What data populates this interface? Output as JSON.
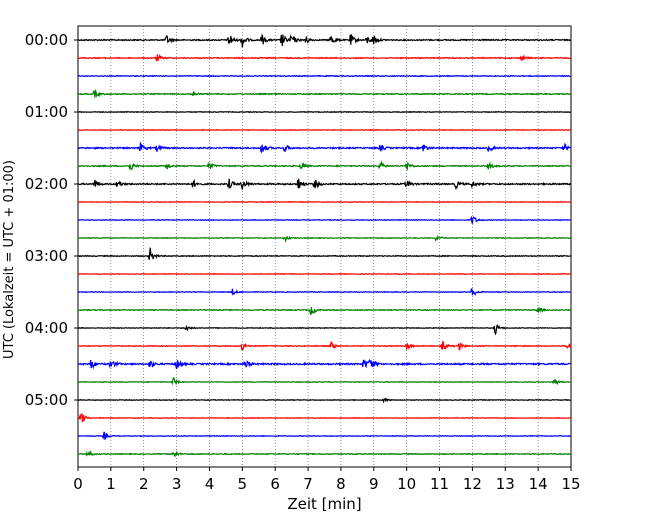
{
  "chart_data": {
    "type": "line",
    "title": "",
    "xlabel": "Zeit  [min]",
    "ylabel": "UTC (Lokalzeit = UTC + 01:00)",
    "xlim": [
      0,
      15
    ],
    "x_ticks": [
      0,
      1,
      2,
      3,
      4,
      5,
      6,
      7,
      8,
      9,
      10,
      11,
      12,
      13,
      14,
      15
    ],
    "y_tick_labels": [
      "00:00",
      "01:00",
      "02:00",
      "03:00",
      "04:00",
      "05:00"
    ],
    "vertical_grid": "dotted",
    "trace_interval_min": 15,
    "colors_cycle": [
      "#000000",
      "#ff0000",
      "#0000ff",
      "#008000"
    ],
    "traces": [
      {
        "start": "00:00",
        "color": "#000000",
        "noise": 0.35,
        "events": [
          [
            2.7,
            0.6
          ],
          [
            4.6,
            1.0
          ],
          [
            5.0,
            0.9
          ],
          [
            5.6,
            0.7
          ],
          [
            6.2,
            1.0
          ],
          [
            6.5,
            0.8
          ],
          [
            6.9,
            0.7
          ],
          [
            7.7,
            0.7
          ],
          [
            8.3,
            0.8
          ],
          [
            8.8,
            0.5
          ],
          [
            9.0,
            0.7
          ]
        ]
      },
      {
        "start": "00:15",
        "color": "#ff0000",
        "noise": 0.3,
        "events": [
          [
            2.4,
            0.5
          ],
          [
            13.5,
            0.4
          ]
        ]
      },
      {
        "start": "00:30",
        "color": "#0000ff",
        "noise": 0.25,
        "events": []
      },
      {
        "start": "00:45",
        "color": "#008000",
        "noise": 0.3,
        "events": [
          [
            0.5,
            0.5
          ],
          [
            3.5,
            0.4
          ]
        ]
      },
      {
        "start": "01:00",
        "color": "#000000",
        "noise": 0.2,
        "events": []
      },
      {
        "start": "01:15",
        "color": "#ff0000",
        "noise": 0.2,
        "events": []
      },
      {
        "start": "01:30",
        "color": "#0000ff",
        "noise": 0.4,
        "events": [
          [
            1.9,
            0.6
          ],
          [
            2.4,
            0.4
          ],
          [
            5.6,
            0.9
          ],
          [
            6.3,
            0.5
          ],
          [
            9.2,
            0.4
          ],
          [
            10.5,
            0.6
          ],
          [
            12.5,
            0.5
          ],
          [
            14.8,
            0.5
          ]
        ]
      },
      {
        "start": "01:45",
        "color": "#008000",
        "noise": 0.3,
        "events": [
          [
            1.6,
            0.6
          ],
          [
            2.7,
            0.5
          ],
          [
            4.0,
            0.5
          ],
          [
            6.8,
            0.5
          ],
          [
            9.2,
            0.6
          ],
          [
            10.0,
            0.7
          ],
          [
            12.5,
            0.5
          ]
        ]
      },
      {
        "start": "02:00",
        "color": "#000000",
        "noise": 0.4,
        "events": [
          [
            0.5,
            0.6
          ],
          [
            1.2,
            0.5
          ],
          [
            3.5,
            0.5
          ],
          [
            4.6,
            0.6
          ],
          [
            5.0,
            0.7
          ],
          [
            6.7,
            0.9
          ],
          [
            7.2,
            0.6
          ],
          [
            10.0,
            0.5
          ],
          [
            11.5,
            0.5
          ],
          [
            12.0,
            0.4
          ]
        ]
      },
      {
        "start": "02:15",
        "color": "#ff0000",
        "noise": 0.2,
        "events": []
      },
      {
        "start": "02:30",
        "color": "#0000ff",
        "noise": 0.2,
        "events": [
          [
            12.0,
            0.7
          ]
        ]
      },
      {
        "start": "02:45",
        "color": "#008000",
        "noise": 0.2,
        "events": [
          [
            6.3,
            0.4
          ],
          [
            10.9,
            0.4
          ]
        ]
      },
      {
        "start": "03:00",
        "color": "#000000",
        "noise": 0.25,
        "events": [
          [
            2.2,
            1.0
          ]
        ]
      },
      {
        "start": "03:15",
        "color": "#ff0000",
        "noise": 0.2,
        "events": []
      },
      {
        "start": "03:30",
        "color": "#0000ff",
        "noise": 0.2,
        "events": [
          [
            4.7,
            0.4
          ],
          [
            12.0,
            0.7
          ]
        ]
      },
      {
        "start": "03:45",
        "color": "#008000",
        "noise": 0.25,
        "events": [
          [
            7.1,
            0.8
          ],
          [
            14.0,
            0.4
          ]
        ]
      },
      {
        "start": "04:00",
        "color": "#000000",
        "noise": 0.2,
        "events": [
          [
            3.3,
            0.4
          ],
          [
            12.7,
            0.7
          ]
        ]
      },
      {
        "start": "04:15",
        "color": "#ff0000",
        "noise": 0.25,
        "events": [
          [
            5.0,
            0.6
          ],
          [
            7.7,
            0.5
          ],
          [
            10.0,
            0.5
          ],
          [
            11.1,
            0.6
          ],
          [
            11.6,
            0.5
          ],
          [
            14.9,
            0.5
          ]
        ]
      },
      {
        "start": "04:30",
        "color": "#0000ff",
        "noise": 0.45,
        "events": [
          [
            0.4,
            0.7
          ],
          [
            1.0,
            0.6
          ],
          [
            2.2,
            0.5
          ],
          [
            3.0,
            0.7
          ],
          [
            5.1,
            0.6
          ],
          [
            8.7,
            0.7
          ],
          [
            8.9,
            0.9
          ]
        ]
      },
      {
        "start": "04:45",
        "color": "#008000",
        "noise": 0.2,
        "events": [
          [
            2.9,
            0.6
          ],
          [
            14.5,
            0.5
          ]
        ]
      },
      {
        "start": "05:00",
        "color": "#000000",
        "noise": 0.2,
        "events": [
          [
            9.3,
            0.3
          ]
        ]
      },
      {
        "start": "05:15",
        "color": "#ff0000",
        "noise": 0.2,
        "events": [
          [
            0.1,
            0.8
          ]
        ]
      },
      {
        "start": "05:30",
        "color": "#0000ff",
        "noise": 0.2,
        "events": [
          [
            0.8,
            0.5
          ]
        ]
      },
      {
        "start": "05:45",
        "color": "#008000",
        "noise": 0.25,
        "events": [
          [
            0.3,
            0.5
          ],
          [
            2.9,
            0.6
          ]
        ]
      }
    ]
  }
}
